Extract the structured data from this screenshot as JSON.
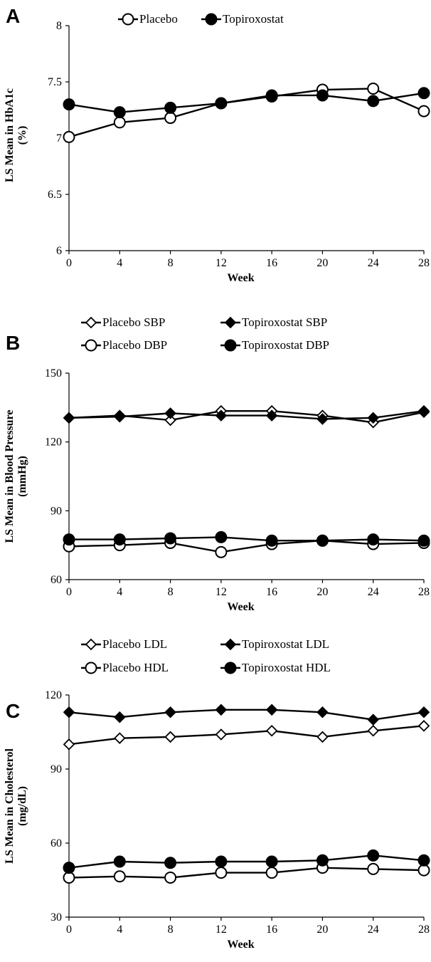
{
  "chart_data": [
    {
      "panel": "A",
      "type": "line",
      "xlabel": "Week",
      "ylabel": "LS Mean in HbA1c (%)",
      "ylabel_lines": [
        "LS Mean in HbA1c",
        "(%)"
      ],
      "x": [
        0,
        4,
        8,
        12,
        16,
        20,
        24,
        28
      ],
      "xticks": [
        "0",
        "4",
        "8",
        "12",
        "16",
        "20",
        "24",
        "28"
      ],
      "ylim": [
        6,
        8
      ],
      "yticks": [
        "6",
        "6.5",
        "7",
        "7.5",
        "8"
      ],
      "grid": false,
      "legend_position": "top",
      "series": [
        {
          "name": "Placebo",
          "marker": "circle",
          "fill": "open",
          "values": [
            7.01,
            7.14,
            7.18,
            7.31,
            7.37,
            7.43,
            7.44,
            7.24
          ]
        },
        {
          "name": "Topiroxostat",
          "marker": "circle",
          "fill": "filled",
          "values": [
            7.3,
            7.23,
            7.27,
            7.31,
            7.38,
            7.38,
            7.33,
            7.4
          ]
        }
      ]
    },
    {
      "panel": "B",
      "type": "line",
      "xlabel": "Week",
      "ylabel": "LS Mean in Blood Pressure (mmHg)",
      "ylabel_lines": [
        "LS Mean in Blood Pressure",
        "(mmHg)"
      ],
      "x": [
        0,
        4,
        8,
        12,
        16,
        20,
        24,
        28
      ],
      "xticks": [
        "0",
        "4",
        "8",
        "12",
        "16",
        "20",
        "24",
        "28"
      ],
      "ylim": [
        60,
        150
      ],
      "yticks": [
        "60",
        "90",
        "120",
        "150"
      ],
      "grid": false,
      "legend_position": "top",
      "series": [
        {
          "name": "Placebo SBP",
          "marker": "diamond",
          "fill": "open",
          "values": [
            130.5,
            131.5,
            129.5,
            133.5,
            133.5,
            131.5,
            128.5,
            133
          ]
        },
        {
          "name": "Topiroxostat SBP",
          "marker": "diamond",
          "fill": "filled",
          "values": [
            130.5,
            131,
            132.5,
            131.5,
            131.5,
            130,
            130.5,
            133.5
          ]
        },
        {
          "name": "Placebo DBP",
          "marker": "circle",
          "fill": "open",
          "values": [
            74.5,
            75,
            76,
            72,
            75.5,
            77,
            75.5,
            76
          ]
        },
        {
          "name": "Topiroxostat DBP",
          "marker": "circle",
          "fill": "filled",
          "values": [
            77.5,
            77.5,
            78,
            78.5,
            77,
            77,
            77.5,
            77
          ]
        }
      ]
    },
    {
      "panel": "C",
      "type": "line",
      "xlabel": "Week",
      "ylabel": "LS Mean in Cholesterol (mg/dL)",
      "ylabel_lines": [
        "LS Mean in Cholesterol",
        "(mg/dL)"
      ],
      "x": [
        0,
        4,
        8,
        12,
        16,
        20,
        24,
        28
      ],
      "xticks": [
        "0",
        "4",
        "8",
        "12",
        "16",
        "20",
        "24",
        "28"
      ],
      "ylim": [
        30,
        120
      ],
      "yticks": [
        "30",
        "60",
        "90",
        "120"
      ],
      "grid": false,
      "legend_position": "top",
      "series": [
        {
          "name": "Placebo LDL",
          "marker": "diamond",
          "fill": "open",
          "values": [
            100,
            102.5,
            103,
            104,
            105.5,
            103,
            105.5,
            107.5
          ]
        },
        {
          "name": "Topiroxostat LDL",
          "marker": "diamond",
          "fill": "filled",
          "values": [
            113,
            111,
            113,
            114,
            114,
            113,
            110,
            113
          ]
        },
        {
          "name": "Placebo HDL",
          "marker": "circle",
          "fill": "open",
          "values": [
            46,
            46.5,
            46,
            48,
            48,
            50,
            49.5,
            49
          ]
        },
        {
          "name": "Topiroxostat HDL",
          "marker": "circle",
          "fill": "filled",
          "values": [
            50,
            52.5,
            52,
            52.5,
            52.5,
            53,
            55,
            53
          ]
        }
      ]
    }
  ]
}
